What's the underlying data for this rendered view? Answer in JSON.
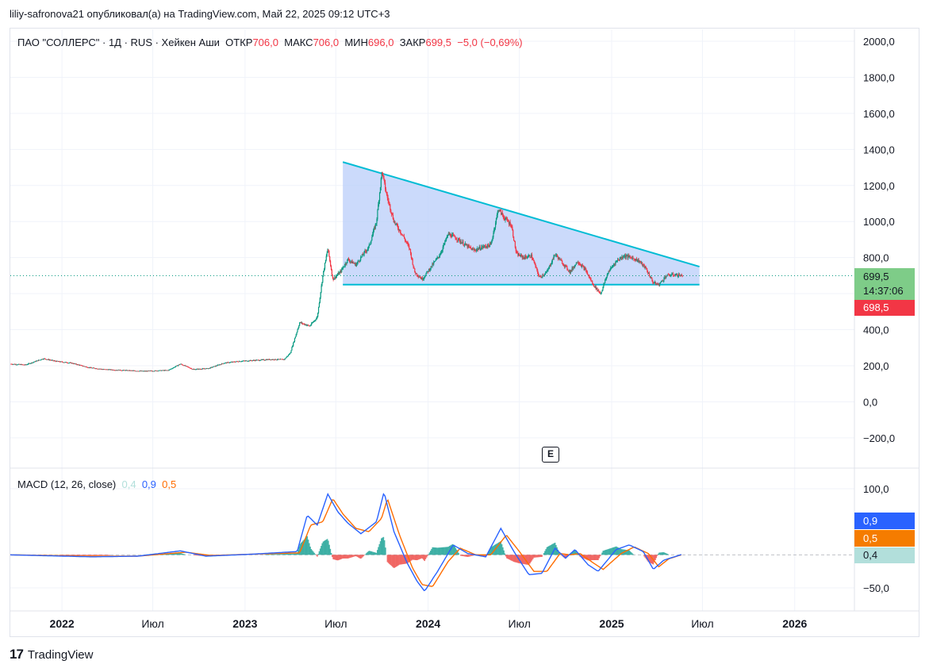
{
  "header": {
    "publish_line": "liliy-safronova21 опубликовал(а) на TradingView.com, Май 22, 2025 09:12 UTC+3"
  },
  "legend": {
    "symbol": "ПАО \"СОЛЛЕРС\" · 1Д · RUS · Хейкен Аши",
    "open_label": "ОТКР",
    "open_value": "706,0",
    "high_label": "МАКС",
    "high_value": "706,0",
    "low_label": "МИН",
    "low_value": "696,0",
    "close_label": "ЗАКР",
    "close_value": "699,5",
    "change": "−5,0 (−0,69%)"
  },
  "macd_legend": {
    "name": "MACD (12, 26, close)",
    "hist": "0,4",
    "macd": "0,9",
    "signal": "0,5"
  },
  "price_tags": {
    "last": "699,5",
    "countdown": "14:37:06",
    "second": "698,5"
  },
  "macd_tags": {
    "macd": "0,9",
    "signal": "0,5",
    "hist": "0,4"
  },
  "event_badge": "E",
  "brand": "TradingView",
  "colors": {
    "up": "#089981",
    "down": "#f23645",
    "pattern_line": "#00bcd4",
    "pattern_fill": "#b9cdfa",
    "macd_line": "#2962ff",
    "signal_line": "#ff6d00",
    "hist_up": "#26a69a",
    "hist_down": "#ef5350",
    "tag_green": "#7ecc88",
    "tag_red": "#f23645",
    "tag_blue": "#2962ff",
    "tag_orange": "#f57c00",
    "tag_teal": "#b2dfdb"
  },
  "chart_data": [
    {
      "type": "candlestick",
      "title": "ПАО \"СОЛЛЕРС\" · 1Д · RUS · Хейкен Аши",
      "y_ticks": [
        "2000,0",
        "1800,0",
        "1600,0",
        "1400,0",
        "1200,0",
        "1000,0",
        "800,0",
        "600,0",
        "400,0",
        "200,0",
        "0,0",
        "−200,0"
      ],
      "y_tick_values": [
        2000,
        1800,
        1600,
        1400,
        1200,
        1000,
        800,
        600,
        400,
        200,
        0,
        -200
      ],
      "ylim": [
        -200,
        2000
      ],
      "x_ticks": [
        "2022",
        "Июл",
        "2023",
        "Июл",
        "2024",
        "Июл",
        "2025",
        "Июл",
        "2026"
      ],
      "x_tick_bold": [
        true,
        false,
        true,
        false,
        true,
        false,
        true,
        false,
        true
      ],
      "x_tick_dates": [
        "2022-01-01",
        "2022-07-01",
        "2023-01-01",
        "2023-07-01",
        "2024-01-01",
        "2024-07-01",
        "2025-01-01",
        "2025-07-01",
        "2026-01-01"
      ],
      "x_range": [
        "2021-09-20",
        "2026-04-30"
      ],
      "grid": true,
      "last_price": 699.5,
      "price_path": [
        [
          "2021-09-20",
          210
        ],
        [
          "2021-10-20",
          205
        ],
        [
          "2021-11-10",
          225
        ],
        [
          "2021-11-25",
          240
        ],
        [
          "2021-12-20",
          225
        ],
        [
          "2022-01-20",
          215
        ],
        [
          "2022-02-24",
          190
        ],
        [
          "2022-03-25",
          180
        ],
        [
          "2022-05-01",
          175
        ],
        [
          "2022-06-15",
          170
        ],
        [
          "2022-08-01",
          175
        ],
        [
          "2022-08-25",
          210
        ],
        [
          "2022-09-20",
          180
        ],
        [
          "2022-10-20",
          185
        ],
        [
          "2022-11-20",
          215
        ],
        [
          "2022-12-20",
          225
        ],
        [
          "2023-01-20",
          230
        ],
        [
          "2023-02-20",
          235
        ],
        [
          "2023-03-20",
          235
        ],
        [
          "2023-04-01",
          270
        ],
        [
          "2023-04-20",
          440
        ],
        [
          "2023-05-10",
          420
        ],
        [
          "2023-05-25",
          470
        ],
        [
          "2023-06-05",
          700
        ],
        [
          "2023-06-15",
          850
        ],
        [
          "2023-06-25",
          680
        ],
        [
          "2023-07-10",
          720
        ],
        [
          "2023-07-25",
          790
        ],
        [
          "2023-08-10",
          760
        ],
        [
          "2023-08-25",
          820
        ],
        [
          "2023-09-05",
          860
        ],
        [
          "2023-09-20",
          1000
        ],
        [
          "2023-10-01",
          1280
        ],
        [
          "2023-10-10",
          1150
        ],
        [
          "2023-10-25",
          1000
        ],
        [
          "2023-11-10",
          930
        ],
        [
          "2023-11-25",
          850
        ],
        [
          "2023-12-05",
          720
        ],
        [
          "2023-12-20",
          680
        ],
        [
          "2024-01-10",
          760
        ],
        [
          "2024-01-25",
          820
        ],
        [
          "2024-02-10",
          930
        ],
        [
          "2024-02-25",
          910
        ],
        [
          "2024-03-15",
          870
        ],
        [
          "2024-04-01",
          840
        ],
        [
          "2024-04-20",
          860
        ],
        [
          "2024-05-05",
          870
        ],
        [
          "2024-05-20",
          1070
        ],
        [
          "2024-06-01",
          1020
        ],
        [
          "2024-06-15",
          980
        ],
        [
          "2024-06-25",
          820
        ],
        [
          "2024-07-10",
          800
        ],
        [
          "2024-07-25",
          810
        ],
        [
          "2024-08-10",
          690
        ],
        [
          "2024-08-25",
          720
        ],
        [
          "2024-09-10",
          820
        ],
        [
          "2024-09-25",
          770
        ],
        [
          "2024-10-10",
          720
        ],
        [
          "2024-10-25",
          780
        ],
        [
          "2024-11-10",
          730
        ],
        [
          "2024-11-25",
          650
        ],
        [
          "2024-12-10",
          600
        ],
        [
          "2024-12-25",
          720
        ],
        [
          "2025-01-10",
          780
        ],
        [
          "2025-01-25",
          810
        ],
        [
          "2025-02-10",
          800
        ],
        [
          "2025-02-25",
          780
        ],
        [
          "2025-03-10",
          740
        ],
        [
          "2025-03-25",
          660
        ],
        [
          "2025-04-05",
          650
        ],
        [
          "2025-04-20",
          700
        ],
        [
          "2025-05-05",
          705
        ],
        [
          "2025-05-22",
          699.5
        ]
      ],
      "triangle": {
        "start": "2023-07-15",
        "end": "2025-06-25",
        "upper": [
          1330,
          750
        ],
        "lower": [
          650,
          650
        ]
      }
    },
    {
      "type": "line",
      "title": "MACD (12, 26, close)",
      "y_ticks": [
        "100,0",
        "−50,0"
      ],
      "y_tick_values": [
        100,
        -50
      ],
      "ylim": [
        -70,
        110
      ],
      "series": [
        {
          "name": "MACD",
          "points": [
            [
              "2021-09-20",
              0
            ],
            [
              "2022-03-01",
              -3
            ],
            [
              "2022-06-01",
              -2
            ],
            [
              "2022-08-25",
              6
            ],
            [
              "2022-10-15",
              -2
            ],
            [
              "2023-01-15",
              1
            ],
            [
              "2023-04-15",
              5
            ],
            [
              "2023-05-05",
              60
            ],
            [
              "2023-05-25",
              45
            ],
            [
              "2023-06-15",
              92
            ],
            [
              "2023-07-05",
              65
            ],
            [
              "2023-07-25",
              48
            ],
            [
              "2023-08-20",
              32
            ],
            [
              "2023-09-20",
              50
            ],
            [
              "2023-10-05",
              95
            ],
            [
              "2023-10-25",
              35
            ],
            [
              "2023-11-20",
              -12
            ],
            [
              "2023-12-10",
              -40
            ],
            [
              "2023-12-25",
              -55
            ],
            [
              "2024-01-20",
              -25
            ],
            [
              "2024-02-20",
              15
            ],
            [
              "2024-03-20",
              2
            ],
            [
              "2024-04-25",
              -3
            ],
            [
              "2024-05-25",
              40
            ],
            [
              "2024-06-20",
              5
            ],
            [
              "2024-07-20",
              -30
            ],
            [
              "2024-08-15",
              -28
            ],
            [
              "2024-09-10",
              10
            ],
            [
              "2024-10-01",
              -5
            ],
            [
              "2024-10-20",
              8
            ],
            [
              "2024-11-15",
              -15
            ],
            [
              "2024-12-05",
              -25
            ],
            [
              "2025-01-10",
              8
            ],
            [
              "2025-02-05",
              15
            ],
            [
              "2025-03-05",
              5
            ],
            [
              "2025-03-25",
              -22
            ],
            [
              "2025-04-15",
              -8
            ],
            [
              "2025-05-22",
              0.9
            ]
          ]
        },
        {
          "name": "Signal",
          "points": [
            [
              "2021-09-20",
              0
            ],
            [
              "2022-03-01",
              -2
            ],
            [
              "2022-06-01",
              -2
            ],
            [
              "2022-09-05",
              4
            ],
            [
              "2022-10-25",
              -1
            ],
            [
              "2023-01-15",
              1
            ],
            [
              "2023-04-20",
              3
            ],
            [
              "2023-05-12",
              45
            ],
            [
              "2023-06-05",
              50
            ],
            [
              "2023-06-25",
              85
            ],
            [
              "2023-07-15",
              62
            ],
            [
              "2023-08-10",
              40
            ],
            [
              "2023-09-05",
              35
            ],
            [
              "2023-09-30",
              55
            ],
            [
              "2023-10-12",
              85
            ],
            [
              "2023-11-05",
              30
            ],
            [
              "2023-12-01",
              -20
            ],
            [
              "2023-12-20",
              -45
            ],
            [
              "2024-01-10",
              -48
            ],
            [
              "2024-02-10",
              -10
            ],
            [
              "2024-03-05",
              10
            ],
            [
              "2024-04-05",
              0
            ],
            [
              "2024-05-05",
              0
            ],
            [
              "2024-06-05",
              30
            ],
            [
              "2024-07-01",
              5
            ],
            [
              "2024-07-30",
              -25
            ],
            [
              "2024-08-25",
              -25
            ],
            [
              "2024-09-20",
              2
            ],
            [
              "2024-10-10",
              0
            ],
            [
              "2024-10-30",
              2
            ],
            [
              "2024-11-25",
              -12
            ],
            [
              "2024-12-15",
              -22
            ],
            [
              "2025-01-20",
              2
            ],
            [
              "2025-02-15",
              12
            ],
            [
              "2025-03-15",
              2
            ],
            [
              "2025-04-05",
              -18
            ],
            [
              "2025-04-25",
              -6
            ],
            [
              "2025-05-22",
              0.5
            ]
          ]
        }
      ],
      "histogram_last": 0.4
    }
  ]
}
